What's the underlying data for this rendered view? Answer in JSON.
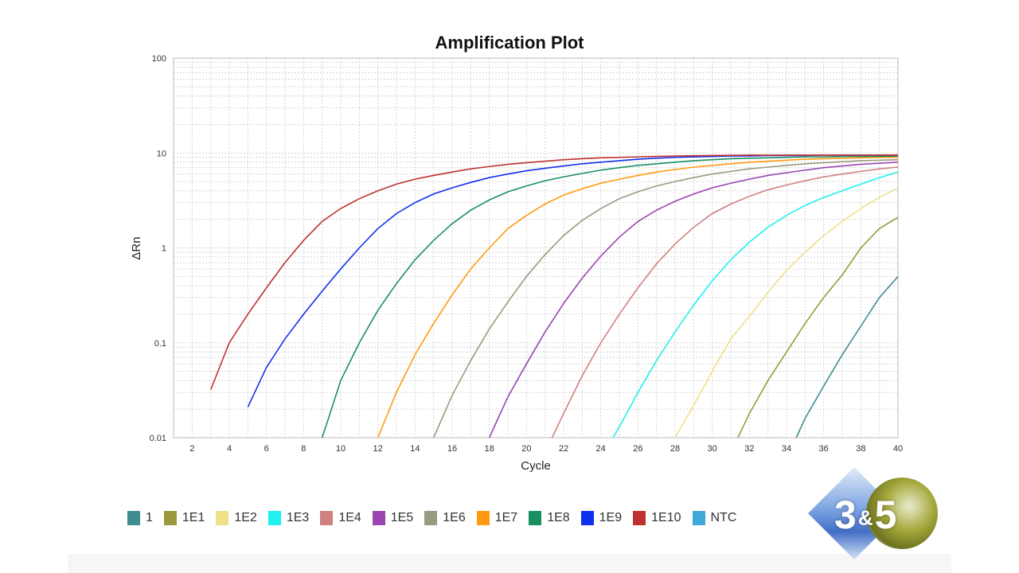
{
  "chart_data": {
    "type": "line",
    "title": "Amplification Plot",
    "xlabel": "Cycle",
    "ylabel": "ΔRn",
    "xlim": [
      1,
      40
    ],
    "ylim": [
      0.01,
      100
    ],
    "yscale": "log",
    "xticks": [
      2,
      4,
      6,
      8,
      10,
      12,
      14,
      16,
      18,
      20,
      22,
      24,
      26,
      28,
      30,
      32,
      34,
      36,
      38,
      40
    ],
    "yticks": [
      "0.01",
      "0.1",
      "1",
      "10",
      "100"
    ],
    "grid": true,
    "legend_position": "bottom",
    "series": [
      {
        "name": "1",
        "color": "#3f8b8e",
        "start": 34,
        "values": [
          0.006,
          0.016,
          0.035,
          0.075,
          0.15,
          0.3,
          0.5
        ]
      },
      {
        "name": "1E1",
        "color": "#9a9a3c",
        "start": 31,
        "values": [
          0.007,
          0.018,
          0.04,
          0.08,
          0.16,
          0.3,
          0.52,
          1.0,
          1.6,
          2.1
        ]
      },
      {
        "name": "1E2",
        "color": "#efe08a",
        "start": 28,
        "values": [
          0.01,
          0.022,
          0.05,
          0.11,
          0.19,
          0.34,
          0.58,
          0.9,
          1.35,
          1.9,
          2.6,
          3.4,
          4.3
        ]
      },
      {
        "name": "1E3",
        "color": "#1ff0f0",
        "start": 24,
        "values": [
          0.006,
          0.013,
          0.03,
          0.065,
          0.13,
          0.25,
          0.45,
          0.75,
          1.15,
          1.65,
          2.2,
          2.8,
          3.4,
          4.0,
          4.7,
          5.5,
          6.3
        ]
      },
      {
        "name": "1E4",
        "color": "#d08080",
        "start": 21,
        "values": [
          0.007,
          0.018,
          0.045,
          0.1,
          0.2,
          0.38,
          0.68,
          1.1,
          1.65,
          2.3,
          2.9,
          3.5,
          4.1,
          4.6,
          5.1,
          5.6,
          6.0,
          6.4,
          6.8,
          7.1
        ]
      },
      {
        "name": "1E5",
        "color": "#9b45b0",
        "start": 18,
        "values": [
          0.01,
          0.027,
          0.06,
          0.13,
          0.26,
          0.48,
          0.82,
          1.3,
          1.9,
          2.5,
          3.1,
          3.7,
          4.3,
          4.8,
          5.3,
          5.8,
          6.2,
          6.6,
          7.0,
          7.3,
          7.6,
          7.8,
          8.0
        ]
      },
      {
        "name": "1E6",
        "color": "#9a9a80",
        "start": 15,
        "values": [
          0.01,
          0.028,
          0.065,
          0.14,
          0.27,
          0.5,
          0.85,
          1.35,
          1.95,
          2.6,
          3.3,
          3.9,
          4.5,
          5.0,
          5.5,
          6.0,
          6.4,
          6.8,
          7.1,
          7.4,
          7.7,
          7.9,
          8.1,
          8.3,
          8.4,
          8.5
        ]
      },
      {
        "name": "1E7",
        "color": "#ff9a10",
        "start": 12,
        "values": [
          0.01,
          0.03,
          0.075,
          0.16,
          0.32,
          0.6,
          1.0,
          1.6,
          2.2,
          2.9,
          3.6,
          4.2,
          4.8,
          5.3,
          5.8,
          6.3,
          6.7,
          7.1,
          7.4,
          7.7,
          8.0,
          8.2,
          8.4,
          8.6,
          8.7,
          8.8,
          8.9,
          9.0,
          9.0
        ]
      },
      {
        "name": "1E8",
        "color": "#1a9060",
        "start": 9,
        "values": [
          0.01,
          0.04,
          0.1,
          0.22,
          0.42,
          0.75,
          1.2,
          1.8,
          2.5,
          3.2,
          3.9,
          4.5,
          5.1,
          5.6,
          6.1,
          6.6,
          7.0,
          7.4,
          7.7,
          8.0,
          8.3,
          8.5,
          8.7,
          8.8,
          8.9,
          9.0,
          9.1,
          9.1,
          9.2,
          9.2,
          9.2,
          9.3
        ]
      },
      {
        "name": "1E9",
        "color": "#1030f0",
        "start": 5,
        "values": [
          0.021,
          0.055,
          0.11,
          0.2,
          0.35,
          0.6,
          1.0,
          1.6,
          2.3,
          3.0,
          3.7,
          4.3,
          4.9,
          5.5,
          6.0,
          6.5,
          6.9,
          7.3,
          7.7,
          8.0,
          8.3,
          8.6,
          8.8,
          9.0,
          9.1,
          9.2,
          9.3,
          9.3,
          9.4,
          9.4,
          9.4,
          9.5,
          9.5,
          9.5,
          9.5,
          9.5
        ]
      },
      {
        "name": "1E10",
        "color": "#c03030",
        "start": 3,
        "values": [
          0.032,
          0.1,
          0.2,
          0.38,
          0.7,
          1.2,
          1.9,
          2.6,
          3.3,
          4.0,
          4.7,
          5.3,
          5.8,
          6.3,
          6.8,
          7.2,
          7.6,
          7.9,
          8.2,
          8.5,
          8.7,
          8.9,
          9.0,
          9.1,
          9.2,
          9.3,
          9.35,
          9.4,
          9.45,
          9.5,
          9.5,
          9.5,
          9.5,
          9.5,
          9.5,
          9.5,
          9.5,
          9.5
        ]
      },
      {
        "name": "NTC",
        "color": "#40a8d8",
        "start": 1,
        "values": []
      }
    ]
  },
  "logo": {
    "text_left": "3",
    "text_amp": "&",
    "text_right": "5"
  }
}
